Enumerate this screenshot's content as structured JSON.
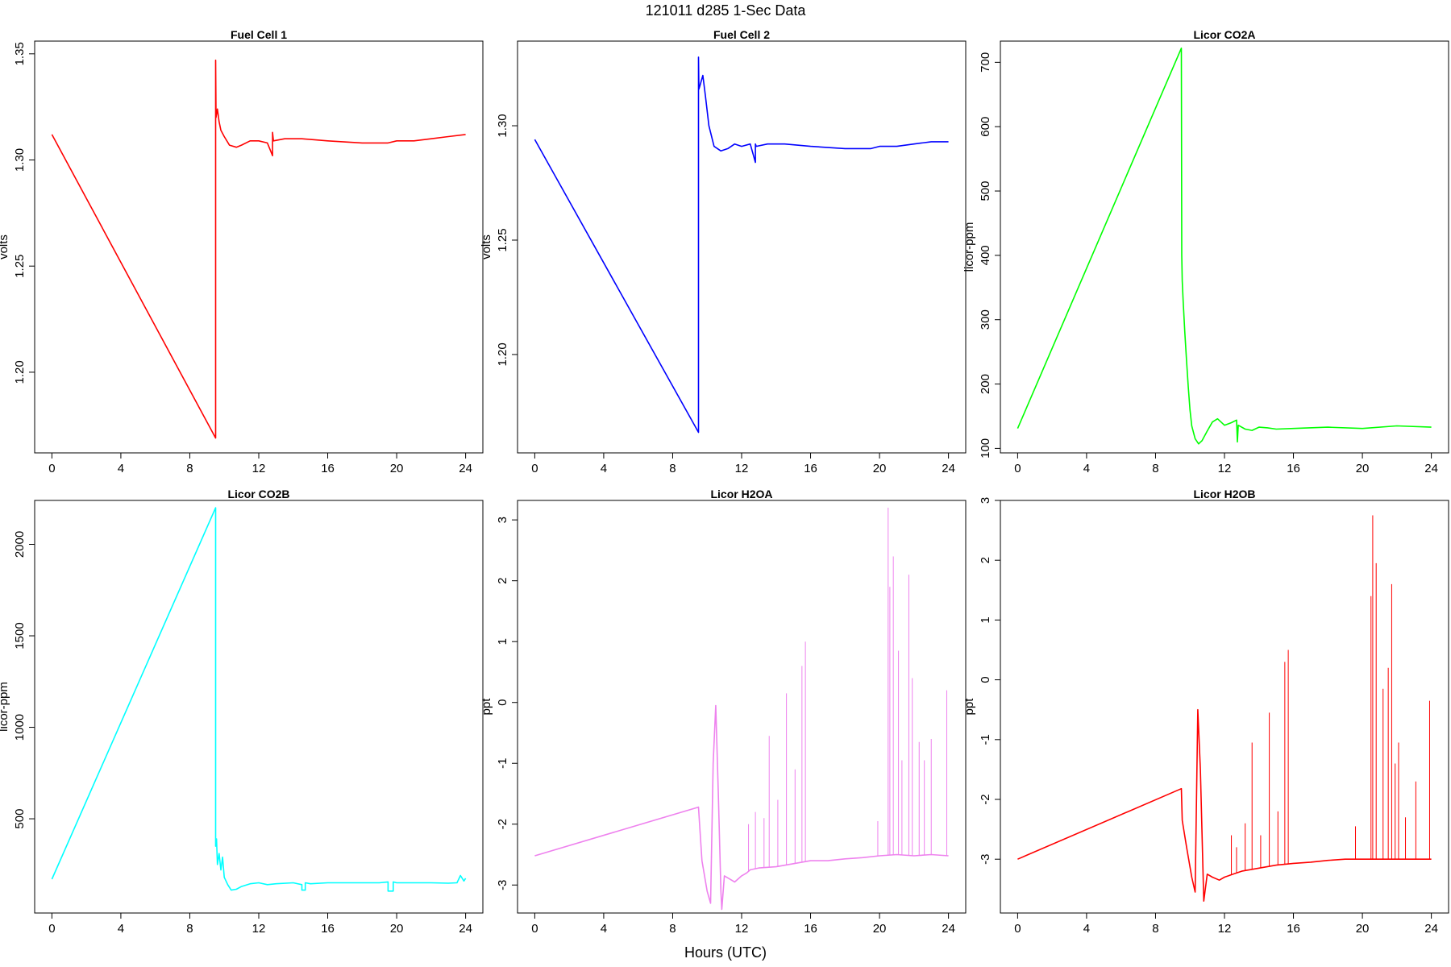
{
  "figure": {
    "title": "121011    d285    1-Sec Data",
    "xlabel": "Hours (UTC)"
  },
  "chart_data": [
    {
      "type": "line",
      "title": "Fuel Cell 1",
      "ylabel": "volts",
      "color": "#ff0000",
      "xlim": [
        -1,
        25
      ],
      "ylim": [
        1.162,
        1.356
      ],
      "xticks": [
        0,
        4,
        8,
        12,
        16,
        20,
        24
      ],
      "yticks": [
        1.2,
        1.25,
        1.3,
        1.35
      ],
      "ytick_labels": [
        "1.20",
        "1.25",
        "1.30",
        "1.35"
      ],
      "x": [
        0,
        9.5,
        9.5,
        9.52,
        9.6,
        9.7,
        9.8,
        10,
        10.3,
        10.7,
        11.0,
        11.5,
        12,
        12.5,
        12.8,
        12.8,
        12.85,
        13.5,
        14.5,
        16,
        18,
        19.5,
        20,
        21,
        22,
        23,
        24
      ],
      "y": [
        1.312,
        1.169,
        1.347,
        1.32,
        1.324,
        1.318,
        1.314,
        1.311,
        1.307,
        1.306,
        1.307,
        1.309,
        1.309,
        1.308,
        1.302,
        1.313,
        1.309,
        1.31,
        1.31,
        1.309,
        1.308,
        1.308,
        1.309,
        1.309,
        1.31,
        1.311,
        1.312
      ]
    },
    {
      "type": "line",
      "title": "Fuel Cell 2",
      "ylabel": "volts",
      "color": "#0000ff",
      "xlim": [
        -1,
        25
      ],
      "ylim": [
        1.157,
        1.337
      ],
      "xticks": [
        0,
        4,
        8,
        12,
        16,
        20,
        24
      ],
      "yticks": [
        1.2,
        1.25,
        1.3
      ],
      "ytick_labels": [
        "1.20",
        "1.25",
        "1.30"
      ],
      "x": [
        0,
        9.5,
        9.5,
        9.52,
        9.6,
        9.75,
        9.9,
        10.1,
        10.4,
        10.8,
        11.2,
        11.6,
        12,
        12.5,
        12.8,
        12.8,
        12.85,
        13.5,
        14.5,
        16,
        18,
        19.5,
        20,
        21,
        22,
        23,
        24
      ],
      "y": [
        1.294,
        1.166,
        1.33,
        1.316,
        1.318,
        1.322,
        1.313,
        1.3,
        1.291,
        1.289,
        1.29,
        1.292,
        1.291,
        1.292,
        1.284,
        1.292,
        1.291,
        1.292,
        1.292,
        1.291,
        1.29,
        1.29,
        1.291,
        1.291,
        1.292,
        1.293,
        1.293
      ]
    },
    {
      "type": "line",
      "title": "Licor CO2A",
      "ylabel": "licor-ppm",
      "color": "#00ff00",
      "xlim": [
        -1,
        25
      ],
      "ylim": [
        93,
        733
      ],
      "xticks": [
        0,
        4,
        8,
        12,
        16,
        20,
        24
      ],
      "yticks": [
        100,
        200,
        300,
        400,
        500,
        600,
        700
      ],
      "ytick_labels": [
        "100",
        "200",
        "300",
        "400",
        "500",
        "600",
        "700"
      ],
      "x": [
        0,
        9.5,
        9.52,
        9.55,
        9.6,
        9.7,
        9.8,
        9.9,
        10.0,
        10.1,
        10.3,
        10.5,
        10.7,
        11.0,
        11.3,
        11.6,
        12,
        12.4,
        12.7,
        12.75,
        12.8,
        13.2,
        13.6,
        14,
        14.5,
        15,
        16,
        18,
        20,
        22,
        24
      ],
      "y": [
        131,
        722,
        400,
        360,
        330,
        280,
        235,
        195,
        160,
        135,
        115,
        107,
        112,
        127,
        141,
        146,
        136,
        140,
        144,
        110,
        136,
        130,
        128,
        133,
        132,
        130,
        131,
        133,
        131,
        135,
        133
      ]
    },
    {
      "type": "line",
      "title": "Licor CO2B",
      "ylabel": "licor-ppm",
      "color": "#00ffff",
      "xlim": [
        -1,
        25
      ],
      "ylim": [
        -15,
        2240
      ],
      "xticks": [
        0,
        4,
        8,
        12,
        16,
        20,
        24
      ],
      "yticks": [
        500,
        1000,
        1500,
        2000
      ],
      "ytick_labels": [
        "500",
        "1000",
        "1500",
        "2000"
      ],
      "x": [
        0,
        9.5,
        9.5,
        9.55,
        9.6,
        9.7,
        9.8,
        9.9,
        10.0,
        10.2,
        10.4,
        10.7,
        11.0,
        11.5,
        12,
        12.5,
        13,
        14,
        14.5,
        14.5,
        14.7,
        14.7,
        15,
        16,
        17,
        18,
        19,
        19.5,
        19.5,
        19.8,
        19.8,
        20,
        21,
        22,
        23,
        23.5,
        23.7,
        23.9,
        24
      ],
      "y": [
        170,
        2200,
        350,
        390,
        250,
        310,
        220,
        290,
        180,
        140,
        110,
        115,
        130,
        145,
        150,
        140,
        145,
        150,
        140,
        110,
        110,
        150,
        145,
        150,
        150,
        150,
        150,
        155,
        105,
        105,
        155,
        150,
        150,
        150,
        148,
        150,
        190,
        160,
        175
      ]
    },
    {
      "type": "line",
      "title": "Licor H2OA",
      "ylabel": "ppt",
      "color": "#ee82ee",
      "xlim": [
        -1,
        25
      ],
      "ylim": [
        -3.46,
        3.32
      ],
      "xticks": [
        0,
        4,
        8,
        12,
        16,
        20,
        24
      ],
      "yticks": [
        -3,
        -2,
        -1,
        0,
        1,
        2,
        3
      ],
      "ytick_labels": [
        "-3",
        "-2",
        "-1",
        "0",
        "1",
        "2",
        "3"
      ],
      "x": [
        0,
        9.5,
        9.55,
        9.7,
        10.0,
        10.2,
        10.35,
        10.5,
        10.65,
        10.8,
        10.85,
        11.0,
        11.3,
        11.6,
        12,
        12.3,
        12.5,
        13,
        14,
        15,
        16,
        17,
        18,
        19,
        20,
        21,
        22,
        23,
        24
      ],
      "y": [
        -2.52,
        -1.72,
        -1.95,
        -2.6,
        -3.1,
        -3.3,
        -1.0,
        -0.05,
        -1.5,
        -3.1,
        -3.4,
        -2.85,
        -2.9,
        -2.95,
        -2.85,
        -2.8,
        -2.75,
        -2.72,
        -2.7,
        -2.65,
        -2.6,
        -2.6,
        -2.57,
        -2.55,
        -2.52,
        -2.5,
        -2.52,
        -2.5,
        -2.52
      ],
      "spikes": [
        {
          "x": 12.4,
          "y": -2.0
        },
        {
          "x": 12.8,
          "y": -1.8
        },
        {
          "x": 13.3,
          "y": -1.9
        },
        {
          "x": 13.6,
          "y": -0.55
        },
        {
          "x": 14.1,
          "y": -1.6
        },
        {
          "x": 14.6,
          "y": 0.15
        },
        {
          "x": 15.1,
          "y": -1.1
        },
        {
          "x": 15.5,
          "y": 0.6
        },
        {
          "x": 15.7,
          "y": 1.0
        },
        {
          "x": 19.9,
          "y": -1.95
        },
        {
          "x": 20.5,
          "y": 3.2
        },
        {
          "x": 20.6,
          "y": 1.9
        },
        {
          "x": 20.8,
          "y": 2.4
        },
        {
          "x": 21.1,
          "y": 0.85
        },
        {
          "x": 21.3,
          "y": -0.95
        },
        {
          "x": 21.7,
          "y": 2.1
        },
        {
          "x": 21.9,
          "y": 0.4
        },
        {
          "x": 22.3,
          "y": -0.65
        },
        {
          "x": 22.6,
          "y": -0.95
        },
        {
          "x": 23.0,
          "y": -0.6
        },
        {
          "x": 23.9,
          "y": 0.2
        }
      ]
    },
    {
      "type": "line",
      "title": "Licor H2OB",
      "ylabel": "ppt",
      "color": "#ff0000",
      "xlim": [
        -1,
        25
      ],
      "ylim": [
        -3.9,
        3.0
      ],
      "xticks": [
        0,
        4,
        8,
        12,
        16,
        20,
        24
      ],
      "yticks": [
        -3,
        -2,
        -1,
        0,
        1,
        2,
        3
      ],
      "ytick_labels": [
        "-3",
        "-2",
        "-1",
        "0",
        "1",
        "2",
        "3"
      ],
      "x": [
        0,
        9.5,
        9.55,
        9.8,
        10.1,
        10.3,
        10.45,
        10.6,
        10.8,
        11.0,
        11.3,
        11.7,
        12,
        12.5,
        13,
        14,
        15,
        16,
        17,
        18,
        19,
        20,
        21,
        22,
        23,
        24
      ],
      "y": [
        -3.0,
        -1.82,
        -2.35,
        -2.8,
        -3.3,
        -3.55,
        -0.5,
        -1.5,
        -3.7,
        -3.25,
        -3.3,
        -3.35,
        -3.3,
        -3.25,
        -3.2,
        -3.15,
        -3.1,
        -3.07,
        -3.05,
        -3.02,
        -3.0,
        -3.0,
        -3.0,
        -3.0,
        -3.0,
        -3.0
      ],
      "spikes": [
        {
          "x": 12.4,
          "y": -2.6
        },
        {
          "x": 12.7,
          "y": -2.8
        },
        {
          "x": 13.2,
          "y": -2.4
        },
        {
          "x": 13.6,
          "y": -1.05
        },
        {
          "x": 14.1,
          "y": -2.6
        },
        {
          "x": 14.6,
          "y": -0.55
        },
        {
          "x": 15.1,
          "y": -2.2
        },
        {
          "x": 15.5,
          "y": 0.3
        },
        {
          "x": 15.7,
          "y": 0.5
        },
        {
          "x": 19.6,
          "y": -2.45
        },
        {
          "x": 20.5,
          "y": 1.4
        },
        {
          "x": 20.6,
          "y": 2.75
        },
        {
          "x": 20.8,
          "y": 1.95
        },
        {
          "x": 21.2,
          "y": -0.15
        },
        {
          "x": 21.5,
          "y": 0.2
        },
        {
          "x": 21.7,
          "y": 1.6
        },
        {
          "x": 21.9,
          "y": -1.4
        },
        {
          "x": 22.1,
          "y": -1.05
        },
        {
          "x": 22.5,
          "y": -2.3
        },
        {
          "x": 23.1,
          "y": -1.7
        },
        {
          "x": 23.9,
          "y": -0.35
        }
      ]
    }
  ]
}
